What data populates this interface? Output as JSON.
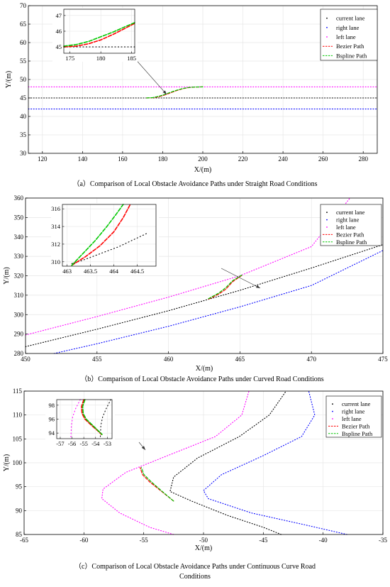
{
  "legend_labels": [
    "current lane",
    "right lane",
    "left lane",
    "Bezier Path",
    "Bspline Path"
  ],
  "colors": {
    "current_lane": "#000000",
    "right_lane": "#0000ff",
    "left_lane": "#ff00ff",
    "bezier": "#ff0000",
    "bspline": "#00c800",
    "axes": "#000000",
    "grid": "#e6e6e6"
  },
  "chart_data": [
    {
      "type": "line",
      "caption": "（a）Comparison of Local Obstacle Avoidance Paths under Straight Road Conditions",
      "xlabel": "X/(m)",
      "ylabel": "Y/(m)",
      "xlim": [
        113,
        287
      ],
      "ylim": [
        30,
        70
      ],
      "xticks": [
        120,
        140,
        160,
        180,
        200,
        220,
        240,
        260,
        280
      ],
      "yticks": [
        30,
        35,
        40,
        45,
        50,
        55,
        60,
        65,
        70
      ],
      "grid": true,
      "legend_position": "top-right",
      "series": [
        {
          "name": "current lane",
          "style": "dotted",
          "x": [
            113,
            287
          ],
          "y": [
            45,
            45
          ]
        },
        {
          "name": "right lane",
          "style": "dotted",
          "x": [
            113,
            287
          ],
          "y": [
            42,
            42
          ]
        },
        {
          "name": "left lane",
          "style": "dotted",
          "x": [
            113,
            287
          ],
          "y": [
            48,
            48
          ]
        },
        {
          "name": "Bezier Path",
          "style": "dashed",
          "x": [
            172,
            175,
            178,
            181,
            184,
            187,
            190,
            193,
            196,
            200
          ],
          "y": [
            45,
            45.05,
            45.3,
            45.8,
            46.4,
            47.0,
            47.5,
            47.8,
            47.95,
            48
          ]
        },
        {
          "name": "Bspline Path",
          "style": "dashed",
          "x": [
            172,
            175,
            178,
            181,
            184,
            187,
            190,
            193,
            196,
            200
          ],
          "y": [
            45,
            45.1,
            45.45,
            45.95,
            46.55,
            47.1,
            47.55,
            47.85,
            47.97,
            48
          ]
        }
      ],
      "inset": {
        "xlim": [
          174,
          185.5
        ],
        "ylim": [
          44.6,
          47.4
        ],
        "xticks": [
          175,
          180,
          185
        ],
        "yticks": [
          45,
          46,
          47
        ],
        "series": [
          {
            "name": "current lane",
            "style": "dotted",
            "x": [
              174,
              185.5
            ],
            "y": [
              45,
              45
            ]
          },
          {
            "name": "Bezier Path",
            "style": "dashed",
            "x": [
              174,
              176,
              178,
              180,
              182,
              184,
              185.5
            ],
            "y": [
              45.0,
              45.05,
              45.2,
              45.45,
              45.8,
              46.2,
              46.5
            ]
          },
          {
            "name": "Bspline Path",
            "style": "dashed",
            "x": [
              174,
              176,
              178,
              180,
              182,
              184,
              185.5
            ],
            "y": [
              45.05,
              45.15,
              45.35,
              45.65,
              45.95,
              46.3,
              46.55
            ]
          }
        ]
      }
    },
    {
      "type": "line",
      "caption": "（b）Comparison of Local Obstacle Avoidance Paths under Curved Road Conditions",
      "xlabel": "X/(m)",
      "ylabel": "Y/(m)",
      "xlim": [
        450,
        475
      ],
      "ylim": [
        280,
        360
      ],
      "xticks": [
        450,
        455,
        460,
        465,
        470,
        475
      ],
      "yticks": [
        280,
        290,
        300,
        310,
        320,
        330,
        340,
        350,
        360
      ],
      "grid": true,
      "legend_position": "top-right",
      "series": [
        {
          "name": "current lane",
          "style": "dotted",
          "x": [
            450,
            455,
            460,
            465,
            470,
            475
          ],
          "y": [
            283.5,
            292.5,
            302,
            312.5,
            324,
            336
          ]
        },
        {
          "name": "right lane",
          "style": "dotted",
          "x": [
            452,
            455,
            460,
            465,
            470,
            475
          ],
          "y": [
            280,
            285,
            294,
            304,
            315,
            333
          ]
        },
        {
          "name": "left lane",
          "style": "dotted",
          "x": [
            450,
            455,
            460,
            465,
            470,
            472.7
          ],
          "y": [
            289.5,
            299,
            309,
            320,
            335,
            360
          ]
        },
        {
          "name": "Bezier Path",
          "style": "dashed",
          "x": [
            462.8,
            463.5,
            464.0,
            464.5,
            465.2
          ],
          "y": [
            308,
            310.5,
            313,
            317,
            320.5
          ]
        },
        {
          "name": "Bspline Path",
          "style": "dashed",
          "x": [
            462.8,
            463.5,
            464.0,
            464.5,
            465.2
          ],
          "y": [
            308.2,
            311,
            313.8,
            317.5,
            320.7
          ]
        }
      ],
      "inset": {
        "xlim": [
          462.9,
          464.9
        ],
        "ylim": [
          309.5,
          316.5
        ],
        "xticks": [
          463,
          463.5,
          464,
          464.5
        ],
        "yticks": [
          310,
          312,
          314,
          316
        ],
        "series": [
          {
            "name": "current lane",
            "style": "dotted",
            "x": [
              463.1,
              463.3,
              463.5,
              463.7,
              463.9,
              464.1,
              464.3,
              464.5,
              464.7
            ],
            "y": [
              309.8,
              310.1,
              310.5,
              310.9,
              311.3,
              311.7,
              312.2,
              312.7,
              313.2
            ]
          },
          {
            "name": "Bezier Path",
            "style": "dashed",
            "x": [
              463.1,
              463.4,
              463.7,
              464.0,
              464.2,
              464.35
            ],
            "y": [
              309.6,
              310.6,
              311.8,
              313.4,
              315.0,
              316.5
            ]
          },
          {
            "name": "Bspline Path",
            "style": "dashed",
            "x": [
              463.1,
              463.35,
              463.6,
              463.85,
              464.05,
              464.2
            ],
            "y": [
              309.6,
              311.0,
              312.4,
              314.0,
              315.4,
              316.5
            ]
          }
        ]
      }
    },
    {
      "type": "line",
      "caption": "（c）Comparison of Local Obstacle Avoidance Paths under Continuous Curve Road Conditions",
      "xlabel": "X/(m)",
      "ylabel": "Y/(m)",
      "xlim": [
        -65,
        -35
      ],
      "ylim": [
        85,
        115
      ],
      "xticks": [
        -65,
        -60,
        -55,
        -50,
        -45,
        -40,
        -35
      ],
      "yticks": [
        85,
        90,
        95,
        100,
        105,
        110,
        115
      ],
      "grid": true,
      "legend_position": "top-right",
      "series": [
        {
          "name": "current lane",
          "style": "dotted",
          "x": [
            -43.5,
            -45,
            -48,
            -51,
            -52.8,
            -52.5,
            -50.5,
            -47,
            -44.5,
            -43.1
          ],
          "y": [
            85,
            86.5,
            89,
            92,
            94,
            97,
            101,
            105.5,
            110,
            115
          ]
        },
        {
          "name": "right lane",
          "style": "dotted",
          "x": [
            -38,
            -41.5,
            -46,
            -49.6,
            -50,
            -48.5,
            -45,
            -41.8,
            -40.7,
            -41.2
          ],
          "y": [
            85,
            87,
            89.5,
            92.5,
            94.2,
            97.5,
            101.5,
            105.5,
            110,
            115
          ]
        },
        {
          "name": "left lane",
          "style": "dotted",
          "x": [
            -52.5,
            -54.5,
            -57,
            -58.5,
            -58.4,
            -56.5,
            -53,
            -49,
            -46.8,
            -46.2
          ],
          "y": [
            85,
            86.5,
            89.5,
            92.5,
            94.5,
            98,
            101.5,
            105.5,
            110,
            115
          ]
        },
        {
          "name": "Bezier Path",
          "style": "dashed",
          "x": [
            -52.5,
            -53.5,
            -54.5,
            -55.1,
            -55.3
          ],
          "y": [
            92,
            94,
            96,
            97.5,
            99
          ]
        },
        {
          "name": "Bspline Path",
          "style": "dashed",
          "x": [
            -52.5,
            -53.5,
            -54.4,
            -55.0,
            -55.2
          ],
          "y": [
            92,
            94.1,
            96.1,
            97.6,
            99
          ]
        }
      ],
      "inset": {
        "xlim": [
          -57.3,
          -52.6
        ],
        "ylim": [
          93.2,
          98.8
        ],
        "xticks": [
          -57,
          -56,
          -55,
          -54,
          -53
        ],
        "yticks": [
          94,
          96,
          98
        ],
        "series": [
          {
            "name": "left lane",
            "style": "dotted",
            "x": [
              -55.3,
              -55.7,
              -55.95,
              -56.05,
              -56.1
            ],
            "y": [
              98.8,
              97.5,
              96.3,
              95.1,
              93.2
            ]
          },
          {
            "name": "current lane",
            "style": "dotted",
            "x": [
              -52.7,
              -53.1,
              -53.4,
              -53.55,
              -53.6
            ],
            "y": [
              98.8,
              97.5,
              96.3,
              95.1,
              93.2
            ]
          },
          {
            "name": "Bezier Path",
            "style": "dashed",
            "x": [
              -55.0,
              -55.2,
              -55.15,
              -54.9,
              -54.4,
              -53.8,
              -53.5
            ],
            "y": [
              98.8,
              97.8,
              96.8,
              96.0,
              95.2,
              94.3,
              93.8
            ]
          },
          {
            "name": "Bspline Path",
            "style": "dashed",
            "x": [
              -54.9,
              -55.1,
              -55.05,
              -54.8,
              -54.3,
              -53.75,
              -53.45
            ],
            "y": [
              98.8,
              97.8,
              96.8,
              96.0,
              95.2,
              94.3,
              93.8
            ]
          }
        ]
      }
    }
  ]
}
